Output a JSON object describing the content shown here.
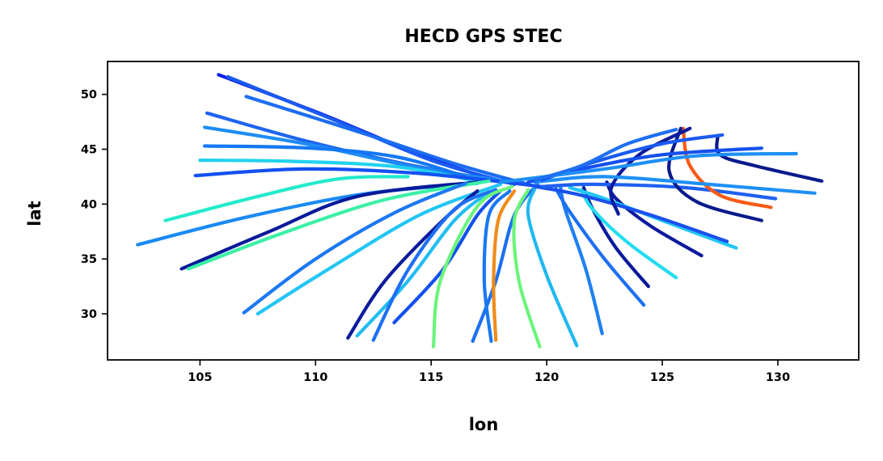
{
  "chart_data": {
    "type": "line",
    "title": "HECD GPS STEC",
    "xlabel": "lon",
    "ylabel": "lat",
    "xlim": [
      101,
      133.5
    ],
    "ylim": [
      25.8,
      53
    ],
    "xticks": [
      "105",
      "110",
      "115",
      "120",
      "125",
      "130"
    ],
    "yticks": [
      "30",
      "35",
      "40",
      "45",
      "50"
    ],
    "colormap": "jet",
    "grid": false,
    "legend": "none",
    "series": [
      {
        "color": "#0a1ee6",
        "x": [
          105.8,
          110.5,
          114.5,
          118.0
        ],
        "y": [
          51.8,
          48.0,
          44.5,
          42.0
        ]
      },
      {
        "color": "#1a5af0",
        "x": [
          106.2,
          111.0,
          115.0,
          118.6
        ],
        "y": [
          51.6,
          47.5,
          44.0,
          41.8
        ]
      },
      {
        "color": "#1c6cf2",
        "x": [
          107.0,
          112.0,
          116.0,
          119.2
        ],
        "y": [
          49.8,
          46.5,
          43.7,
          41.8
        ]
      },
      {
        "color": "#1e64f0",
        "x": [
          105.3,
          109.5,
          114.0,
          118.2
        ],
        "y": [
          48.3,
          45.8,
          43.6,
          42.0
        ]
      },
      {
        "color": "#1e8cf5",
        "x": [
          105.2,
          109.8,
          114.5,
          118.8
        ],
        "y": [
          47.0,
          45.4,
          43.3,
          41.9
        ]
      },
      {
        "color": "#1478f5",
        "x": [
          105.2,
          109.8,
          113.5,
          116.5
        ],
        "y": [
          45.3,
          45.1,
          44.3,
          42.5
        ]
      },
      {
        "color": "#22d2ee",
        "x": [
          105.0,
          109.0,
          113.5,
          117.2
        ],
        "y": [
          44.0,
          43.9,
          43.4,
          42.0
        ]
      },
      {
        "color": "#1450f0",
        "x": [
          104.8,
          109.5,
          114.5,
          119.8
        ],
        "y": [
          42.6,
          43.2,
          42.8,
          41.6
        ]
      },
      {
        "color": "#22eacc",
        "x": [
          103.5,
          107.5,
          111.0,
          114.0
        ],
        "y": [
          38.5,
          40.7,
          42.3,
          42.5
        ]
      },
      {
        "color": "#1a8af5",
        "x": [
          102.3,
          107.0,
          112.0,
          117.0
        ],
        "y": [
          36.3,
          38.8,
          40.9,
          41.9
        ]
      },
      {
        "color": "#081a9a",
        "x": [
          104.2,
          108.0,
          111.8,
          117.0
        ],
        "y": [
          34.1,
          37.5,
          40.7,
          42.0
        ]
      },
      {
        "color": "#3cf0a6",
        "x": [
          104.5,
          108.5,
          113.0,
          117.5
        ],
        "y": [
          34.1,
          37.3,
          40.4,
          42.1
        ]
      },
      {
        "color": "#22c6f2",
        "x": [
          107.5,
          110.5,
          114.5,
          118.0
        ],
        "y": [
          30.0,
          34.0,
          39.0,
          41.8
        ]
      },
      {
        "color": "#1c78f2",
        "x": [
          106.9,
          110.0,
          113.5,
          116.5
        ],
        "y": [
          30.1,
          35.0,
          39.3,
          41.9
        ]
      },
      {
        "color": "#0c1a9c",
        "x": [
          111.4,
          113.0,
          115.5,
          117.0
        ],
        "y": [
          27.8,
          33.0,
          38.5,
          41.2
        ]
      },
      {
        "color": "#22bdf2",
        "x": [
          111.8,
          114.0,
          116.0,
          117.5
        ],
        "y": [
          28.0,
          33.0,
          38.5,
          41.1
        ]
      },
      {
        "color": "#1e70f2",
        "x": [
          112.5,
          114.0,
          116.0,
          117.8
        ],
        "y": [
          27.6,
          34.0,
          39.5,
          41.3
        ]
      },
      {
        "color": "#1450ee",
        "x": [
          113.4,
          115.5,
          117.0,
          118.0
        ],
        "y": [
          29.2,
          34.0,
          39.0,
          41.2
        ]
      },
      {
        "color": "#6cf47c",
        "x": [
          115.1,
          115.4,
          117.0,
          118.5
        ],
        "y": [
          27.0,
          33.0,
          39.8,
          41.6
        ]
      },
      {
        "color": "#1c70f2",
        "x": [
          116.8,
          117.8,
          118.6,
          119.6
        ],
        "y": [
          27.5,
          33.0,
          39.0,
          41.8
        ]
      },
      {
        "color": "#1878f2",
        "x": [
          117.6,
          117.3,
          117.5,
          118.4
        ],
        "y": [
          27.5,
          33.0,
          39.0,
          41.2
        ]
      },
      {
        "color": "#f08c1a",
        "x": [
          117.8,
          117.7,
          117.9,
          118.6
        ],
        "y": [
          27.6,
          33.0,
          38.5,
          41.2
        ]
      },
      {
        "color": "#6cf47c",
        "x": [
          119.7,
          118.8,
          118.6,
          119.2
        ],
        "y": [
          27.0,
          33.0,
          38.5,
          41.3
        ]
      },
      {
        "color": "#22b8f2",
        "x": [
          121.3,
          120.0,
          119.2,
          119.5
        ],
        "y": [
          27.1,
          33.5,
          39.0,
          41.5
        ]
      },
      {
        "color": "#1e80f2",
        "x": [
          122.4,
          121.7,
          120.8,
          120.6
        ],
        "y": [
          28.2,
          34.0,
          39.5,
          41.5
        ]
      },
      {
        "color": "#1e70f2",
        "x": [
          124.2,
          122.5,
          121.0,
          120.4
        ],
        "y": [
          30.8,
          35.0,
          39.3,
          41.4
        ]
      },
      {
        "color": "#081a9a",
        "x": [
          124.4,
          123.0,
          122.0,
          121.6
        ],
        "y": [
          32.5,
          36.0,
          39.5,
          41.5
        ]
      },
      {
        "color": "#22dcf0",
        "x": [
          125.6,
          123.5,
          122.0,
          121.5
        ],
        "y": [
          33.3,
          36.5,
          39.5,
          41.3
        ]
      },
      {
        "color": "#0c1a9c",
        "x": [
          126.7,
          124.5,
          123.0,
          122.6
        ],
        "y": [
          35.3,
          38.0,
          40.5,
          42.0
        ]
      },
      {
        "color": "#22c6f2",
        "x": [
          128.2,
          125.0,
          122.5,
          121.0
        ],
        "y": [
          36.0,
          38.5,
          40.5,
          41.5
        ]
      },
      {
        "color": "#1a50ee",
        "x": [
          127.8,
          124.5,
          121.5,
          119.5
        ],
        "y": [
          36.6,
          39.0,
          40.8,
          41.6
        ]
      },
      {
        "color": "#1e60f0",
        "x": [
          129.9,
          126.0,
          122.0,
          119.8
        ],
        "y": [
          40.5,
          41.5,
          41.8,
          41.6
        ]
      },
      {
        "color": "#fa5a14",
        "x": [
          129.7,
          127.5,
          126.2,
          125.9
        ],
        "y": [
          39.7,
          40.8,
          43.5,
          46.9
        ]
      },
      {
        "color": "#081a8c",
        "x": [
          129.3,
          126.5,
          125.3,
          125.8
        ],
        "y": [
          38.5,
          40.2,
          43.0,
          46.9
        ]
      },
      {
        "color": "#0c1a9c",
        "x": [
          123.1,
          122.8,
          124.0,
          126.2
        ],
        "y": [
          39.1,
          41.5,
          44.5,
          46.9
        ]
      },
      {
        "color": "#1e90f5",
        "x": [
          131.6,
          127.0,
          122.5,
          119.5
        ],
        "y": [
          41.0,
          41.8,
          42.5,
          42.0
        ]
      },
      {
        "color": "#081a8c",
        "x": [
          131.9,
          129.0,
          127.5,
          127.4
        ],
        "y": [
          42.1,
          43.5,
          44.5,
          46.2
        ]
      },
      {
        "color": "#1a5af0",
        "x": [
          127.6,
          125.0,
          122.0,
          119.8
        ],
        "y": [
          46.3,
          45.5,
          43.8,
          42.2
        ]
      },
      {
        "color": "#1450ee",
        "x": [
          129.3,
          125.0,
          121.5,
          119.2
        ],
        "y": [
          45.1,
          44.5,
          43.2,
          42.0
        ]
      },
      {
        "color": "#1e90f5",
        "x": [
          130.8,
          126.5,
          122.5,
          118.0
        ],
        "y": [
          44.6,
          44.4,
          43.2,
          42.0
        ]
      },
      {
        "color": "#1e70f2",
        "x": [
          125.6,
          123.5,
          121.5,
          119.5
        ],
        "y": [
          46.8,
          45.5,
          43.5,
          42.2
        ]
      }
    ]
  }
}
